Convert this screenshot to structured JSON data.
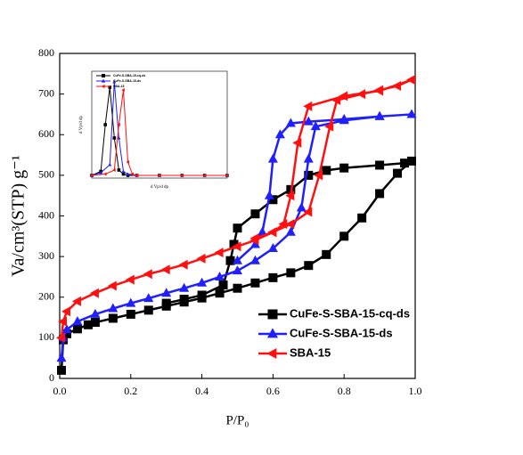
{
  "chart_data": [
    {
      "type": "line",
      "xlabel": "P/P₀",
      "ylabel": "Va/cm³(STP) g⁻¹",
      "xlim": [
        0,
        1
      ],
      "ylim": [
        0,
        800
      ],
      "xticks": [
        {
          "value": 0,
          "label": "0.0"
        },
        0.2,
        0.4,
        0.6,
        0.8,
        {
          "value": 1,
          "label": "1.0"
        }
      ],
      "yticks": [
        0,
        100,
        200,
        300,
        400,
        500,
        600,
        700,
        800
      ],
      "legend": "lower right",
      "series": [
        {
          "name": "CuFe-S-SBA-15-cq-ds",
          "color": "#000000",
          "marker": "square",
          "x": [
            0.005,
            0.01,
            0.02,
            0.05,
            0.08,
            0.1,
            0.15,
            0.2,
            0.25,
            0.3,
            0.35,
            0.4,
            0.45,
            0.5,
            0.55,
            0.6,
            0.65,
            0.7,
            0.75,
            0.8,
            0.85,
            0.9,
            0.95,
            0.99,
            0.97,
            0.9,
            0.8,
            0.75,
            0.7,
            0.65,
            0.6,
            0.55,
            0.5,
            0.49,
            0.48,
            0.46,
            0.4,
            0.35,
            0.3
          ],
          "values": [
            20,
            95,
            110,
            122,
            132,
            138,
            148,
            158,
            168,
            178,
            188,
            198,
            210,
            222,
            235,
            248,
            260,
            278,
            305,
            350,
            395,
            455,
            505,
            535,
            530,
            525,
            518,
            512,
            500,
            465,
            440,
            405,
            370,
            330,
            290,
            230,
            205,
            195,
            185
          ]
        },
        {
          "name": "CuFe-S-SBA-15-ds",
          "color": "#1f1fff",
          "marker": "triangle-up",
          "x": [
            0.005,
            0.01,
            0.02,
            0.05,
            0.1,
            0.15,
            0.2,
            0.25,
            0.3,
            0.35,
            0.4,
            0.45,
            0.5,
            0.55,
            0.6,
            0.65,
            0.68,
            0.7,
            0.72,
            0.8,
            0.9,
            0.99,
            0.9,
            0.8,
            0.7,
            0.65,
            0.62,
            0.6,
            0.59,
            0.57,
            0.55,
            0.5
          ],
          "values": [
            50,
            100,
            120,
            140,
            158,
            172,
            185,
            197,
            210,
            222,
            235,
            250,
            265,
            290,
            320,
            360,
            420,
            540,
            620,
            635,
            645,
            650,
            645,
            638,
            632,
            628,
            600,
            540,
            450,
            360,
            330,
            290
          ]
        },
        {
          "name": "SBA-15",
          "color": "#ff1010",
          "marker": "triangle-left",
          "x": [
            0.005,
            0.01,
            0.02,
            0.05,
            0.1,
            0.15,
            0.2,
            0.25,
            0.3,
            0.35,
            0.4,
            0.45,
            0.5,
            0.55,
            0.6,
            0.65,
            0.7,
            0.73,
            0.76,
            0.78,
            0.85,
            0.9,
            0.95,
            0.99,
            0.9,
            0.8,
            0.7,
            0.67,
            0.65,
            0.63,
            0.6,
            0.55
          ],
          "values": [
            100,
            140,
            165,
            190,
            210,
            228,
            243,
            257,
            268,
            280,
            295,
            310,
            325,
            340,
            360,
            380,
            410,
            500,
            620,
            685,
            700,
            710,
            720,
            735,
            708,
            695,
            670,
            580,
            450,
            380,
            360,
            345
          ]
        }
      ]
    },
    {
      "type": "line",
      "xlabel": "d Vp/d dp",
      "ylabel": "d Vp/d dp",
      "xlim": [
        0,
        30
      ],
      "ylim": [
        0,
        0.8
      ],
      "legend": "upper left",
      "series": [
        {
          "name": "CuFe-S-SBA-15-cq-ds",
          "color": "#000000",
          "marker": "square",
          "x": [
            0,
            2,
            3,
            4,
            5,
            6,
            7,
            8,
            10,
            15,
            20,
            25,
            30
          ],
          "values": [
            0.02,
            0.05,
            0.4,
            0.68,
            0.3,
            0.06,
            0.03,
            0.02,
            0.02,
            0.02,
            0.02,
            0.02,
            0.02
          ]
        },
        {
          "name": "CuFe-S-SBA-15-ds",
          "color": "#1f1fff",
          "marker": "triangle-up",
          "x": [
            0,
            2,
            4,
            5,
            6,
            7,
            8,
            10,
            15,
            20,
            25,
            30
          ],
          "values": [
            0.02,
            0.04,
            0.1,
            0.72,
            0.3,
            0.05,
            0.03,
            0.02,
            0.02,
            0.02,
            0.02,
            0.02
          ]
        },
        {
          "name": "SBA-15",
          "color": "#ff1010",
          "marker": "triangle-left",
          "x": [
            0,
            3,
            5,
            6,
            7,
            8,
            9,
            10,
            15,
            20,
            25,
            30
          ],
          "values": [
            0.02,
            0.03,
            0.06,
            0.4,
            0.66,
            0.12,
            0.03,
            0.02,
            0.02,
            0.02,
            0.02,
            0.02
          ]
        }
      ]
    }
  ]
}
